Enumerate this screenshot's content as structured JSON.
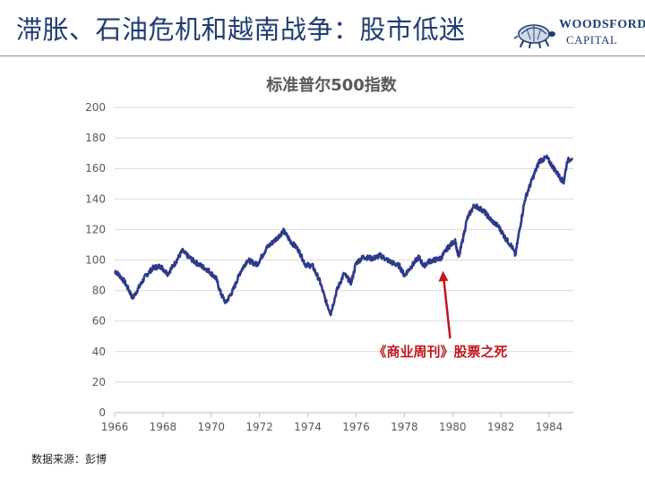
{
  "slide": {
    "title": "滞胀、石油危机和越南战争：股市低迷",
    "source": "数据来源：彭博"
  },
  "logo": {
    "line1": "WOODSFORD",
    "line2": "CAPITAL"
  },
  "colors": {
    "title": "#1f3d73",
    "series": "#2e3a8c",
    "annotation": "#c0181f",
    "grid": "#d9d9d9"
  },
  "chart_data": {
    "type": "line",
    "title": "标准普尔500指数",
    "xlabel": "",
    "ylabel": "",
    "xlim": [
      1966,
      1985
    ],
    "ylim": [
      0,
      200
    ],
    "xticks": [
      1966,
      1968,
      1970,
      1972,
      1974,
      1976,
      1978,
      1980,
      1982,
      1984
    ],
    "yticks": [
      0,
      20,
      40,
      60,
      80,
      100,
      120,
      140,
      160,
      180,
      200
    ],
    "grid": true,
    "series": [
      {
        "name": "",
        "x": [
          1966.0,
          1966.2,
          1966.4,
          1966.6,
          1966.75,
          1967.0,
          1967.3,
          1967.6,
          1967.9,
          1968.2,
          1968.5,
          1968.8,
          1969.0,
          1969.3,
          1969.6,
          1969.9,
          1970.2,
          1970.4,
          1970.6,
          1970.9,
          1971.2,
          1971.5,
          1971.9,
          1972.3,
          1972.7,
          1973.0,
          1973.3,
          1973.6,
          1973.9,
          1974.2,
          1974.5,
          1974.75,
          1974.95,
          1975.2,
          1975.5,
          1975.8,
          1976.0,
          1976.3,
          1976.7,
          1977.0,
          1977.4,
          1977.8,
          1978.0,
          1978.2,
          1978.6,
          1978.8,
          1979.0,
          1979.5,
          1979.8,
          1980.1,
          1980.25,
          1980.6,
          1980.9,
          1981.3,
          1981.6,
          1981.9,
          1982.2,
          1982.45,
          1982.6,
          1982.75,
          1983.0,
          1983.3,
          1983.6,
          1983.9,
          1984.2,
          1984.5,
          1984.6,
          1984.75,
          1984.95
        ],
        "y": [
          93,
          90,
          86,
          80,
          75,
          82,
          90,
          95,
          96,
          91,
          98,
          106,
          103,
          99,
          96,
          93,
          88,
          78,
          72,
          80,
          92,
          100,
          97,
          108,
          114,
          119,
          112,
          107,
          97,
          96,
          86,
          73,
          65,
          80,
          91,
          85,
          98,
          102,
          101,
          103,
          99,
          96,
          90,
          94,
          102,
          96,
          99,
          101,
          108,
          113,
          101,
          127,
          136,
          132,
          126,
          122,
          114,
          109,
          103,
          118,
          140,
          153,
          165,
          167,
          160,
          153,
          151,
          165,
          167
        ]
      }
    ],
    "annotation": {
      "text": "《商业周刊》股票之死",
      "x": 1979.6,
      "y": 97
    }
  }
}
